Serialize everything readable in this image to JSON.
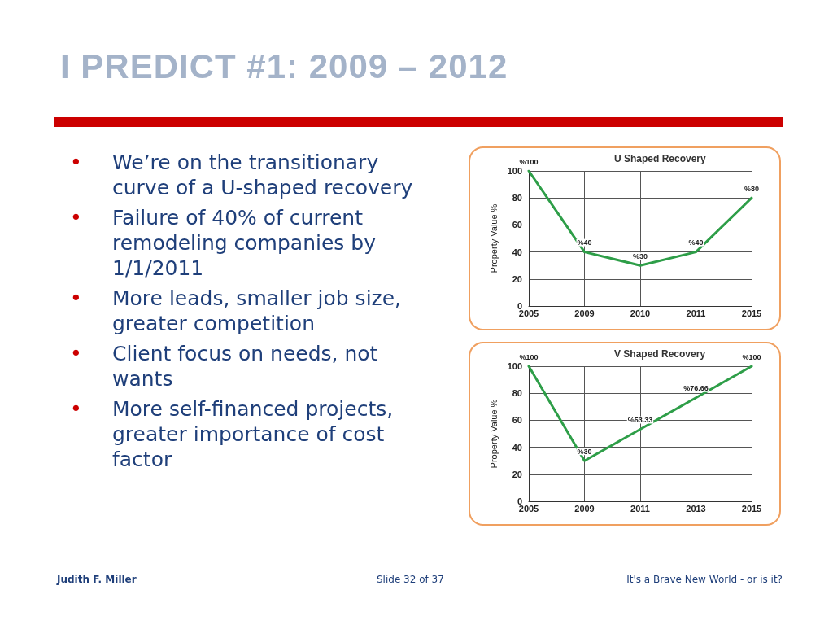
{
  "chart_data": [
    {
      "type": "other",
      "title": "I PREDICT #1: 2009 – 2012",
      "annotations": [
        "• We’re on the transitionary curve of a U-shaped recovery",
        "• Failure of 40% of current remodeling companies by 1/1/2011",
        "• More leads, smaller job size, greater competition",
        "• Client focus on needs, not wants",
        "• More self-financed projects, greater importance of cost factor"
      ]
    },
    {
      "type": "line",
      "title": "U Shaped Recovery",
      "ylabel": "Property Value %",
      "categories": [
        "2005",
        "2009",
        "2010",
        "2011",
        "2015"
      ],
      "values": [
        100,
        40,
        30,
        40,
        80
      ],
      "value_labels": [
        "%100",
        "%40",
        "%30",
        "%40",
        "%80"
      ],
      "color": "#2e9e48",
      "ylim": [
        0,
        100
      ],
      "yticks": [
        0,
        20,
        40,
        60,
        80,
        100
      ],
      "grid": true,
      "marker": "none",
      "line_style": "solid"
    },
    {
      "type": "line",
      "title": "V Shaped Recovery",
      "ylabel": "Property Value %",
      "categories": [
        "2005",
        "2009",
        "2011",
        "2013",
        "2015"
      ],
      "values": [
        100,
        30,
        53.33,
        76.66,
        100
      ],
      "value_labels": [
        "%100",
        "%30",
        "%53.33",
        "%76.66",
        "%100"
      ],
      "color": "#2e9e48",
      "ylim": [
        0,
        100
      ],
      "yticks": [
        0,
        20,
        40,
        60,
        80,
        100
      ],
      "grid": true,
      "marker": "none",
      "line_style": "solid"
    },
    {
      "type": "other",
      "annotations": [
        "Judith F. Miller",
        "Slide 32 of 37",
        "It's a Brave New World - or is it?"
      ]
    }
  ]
}
